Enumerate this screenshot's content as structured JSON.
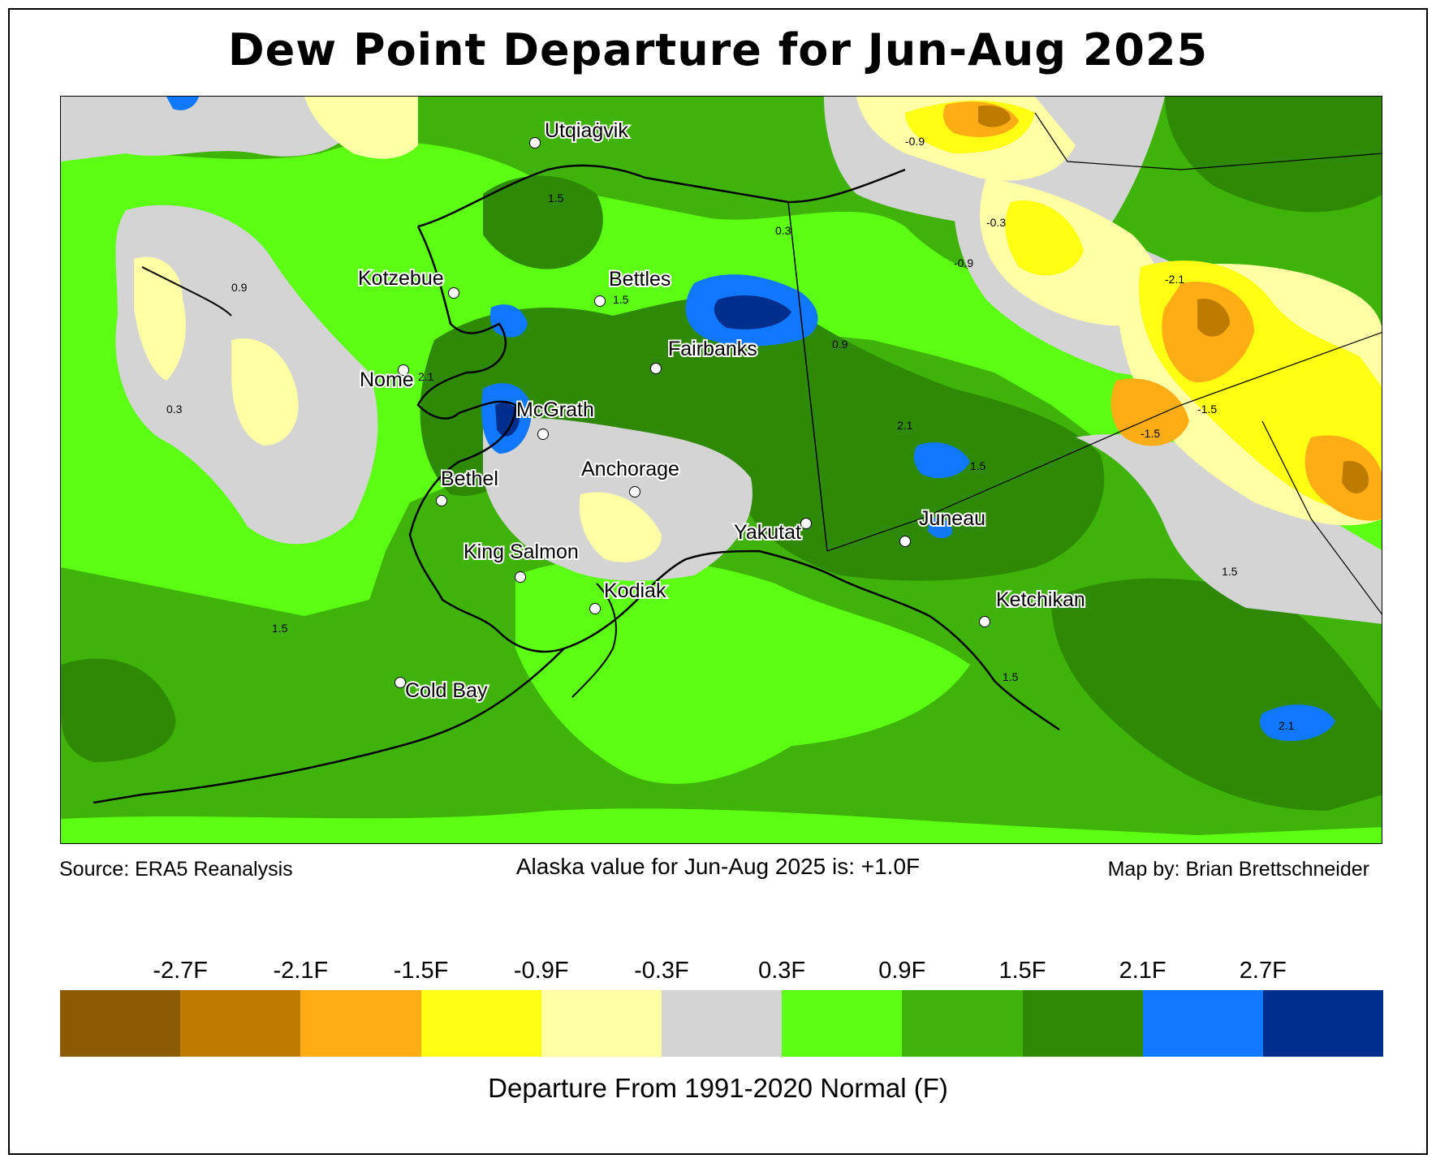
{
  "title": "Dew Point Departure for Jun-Aug 2025",
  "footer": {
    "source": "Source: ERA5 Reanalysis",
    "summary": "Alaska value for Jun-Aug 2025 is: +1.0F",
    "credit": "Map by: Brian Brettschneider"
  },
  "legend": {
    "title": "Departure From 1991-2020 Normal (F)",
    "ticks": [
      "-2.7F",
      "-2.1F",
      "-1.5F",
      "-0.9F",
      "-0.3F",
      "0.3F",
      "0.9F",
      "1.5F",
      "2.1F",
      "2.7F"
    ],
    "colors": [
      "#8c5a00",
      "#bd7b00",
      "#ffad14",
      "#ffff14",
      "#ffffa6",
      "#d4d4d4",
      "#5cff14",
      "#3fb30a",
      "#2e8a05",
      "#0f78ff",
      "#002e8c"
    ]
  },
  "cities": [
    {
      "name": "Utqiaġvik"
    },
    {
      "name": "Kotzebue"
    },
    {
      "name": "Bettles"
    },
    {
      "name": "Nome"
    },
    {
      "name": "Fairbanks"
    },
    {
      "name": "McGrath"
    },
    {
      "name": "Bethel"
    },
    {
      "name": "Anchorage"
    },
    {
      "name": "Yakutat"
    },
    {
      "name": "Juneau"
    },
    {
      "name": "King Salmon"
    },
    {
      "name": "Kodiak"
    },
    {
      "name": "Ketchikan"
    },
    {
      "name": "Cold Bay"
    }
  ],
  "contour_labels": [
    "-0.3",
    "-0.9",
    "-1.5",
    "-2.1",
    "0.3",
    "0.9",
    "1.5",
    "2.1"
  ]
}
